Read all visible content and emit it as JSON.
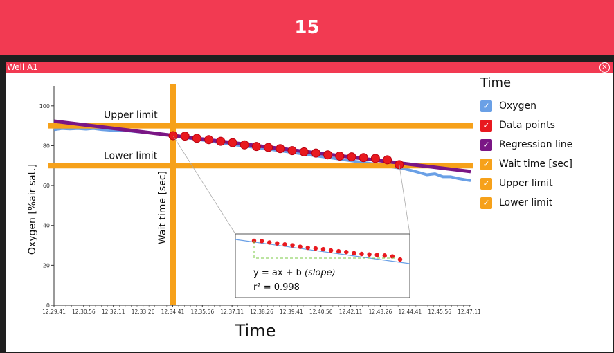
{
  "banner": {
    "title": "15"
  },
  "panel": {
    "title": "Well A1",
    "close_icon": "circle-x-icon"
  },
  "legend": {
    "title": "Time",
    "items": [
      {
        "label": "Oxygen",
        "color": "#6aa0e6"
      },
      {
        "label": "Data points",
        "color": "#e8191f"
      },
      {
        "label": "Regression line",
        "color": "#7a1685"
      },
      {
        "label": "Wait time [sec]",
        "color": "#f6a11a"
      },
      {
        "label": "Upper limit",
        "color": "#f6a11a"
      },
      {
        "label": "Lower limit",
        "color": "#f6a11a"
      }
    ]
  },
  "inset": {
    "equation": "y = ax + b",
    "equation_note": "(slope)",
    "r2": "r² = 0.998"
  },
  "chart_data": {
    "type": "line",
    "xlabel": "Time",
    "ylabel": "Oxygen [%air sat.]",
    "ylim": [
      0,
      110
    ],
    "yticks": [
      0,
      20,
      40,
      60,
      80,
      100
    ],
    "xtick_labels": [
      "12:29:41",
      "12:30:56",
      "12:32:11",
      "12:33:26",
      "12:34:41",
      "12:35:56",
      "12:37:11",
      "12:38:26",
      "12:39:41",
      "12:40:56",
      "12:42:11",
      "12:43:26",
      "12:44:41",
      "12:45:56",
      "12:47:11"
    ],
    "x_unit": "seconds from 12:29:41",
    "xlim": [
      0,
      1050
    ],
    "limits": [
      {
        "label": "Upper limit",
        "y": 90,
        "color": "#f6a11a"
      },
      {
        "label": "Lower limit",
        "y": 70,
        "color": "#f6a11a"
      }
    ],
    "wait_time": {
      "label": "Wait time [sec]",
      "x": 300,
      "color": "#f6a11a"
    },
    "series": [
      {
        "name": "Oxygen",
        "color": "#6aa0e6",
        "x": [
          0,
          20,
          40,
          60,
          80,
          100,
          120,
          140,
          160,
          180,
          200,
          220,
          240,
          260,
          280,
          300,
          330,
          360,
          400,
          450,
          500,
          550,
          600,
          650,
          700,
          750,
          800,
          850,
          880,
          900,
          920,
          940,
          960,
          980,
          1000,
          1020,
          1040,
          1050
        ],
        "y": [
          88,
          88.6,
          88.4,
          88.6,
          88.3,
          88.6,
          88.1,
          87.8,
          87.5,
          87.6,
          87.2,
          86.8,
          86.4,
          86.1,
          85.6,
          85,
          84.1,
          83.2,
          82,
          80.6,
          79.3,
          78,
          76.6,
          75.2,
          73.8,
          72.4,
          71,
          69.4,
          68.5,
          67.6,
          66.5,
          65.4,
          65.9,
          64.4,
          64.4,
          63.5,
          62.8,
          62.5
        ]
      },
      {
        "name": "Regression line",
        "color": "#7a1685",
        "x": [
          0,
          1050
        ],
        "y": [
          92.3,
          67.0
        ]
      },
      {
        "name": "Data points",
        "color": "#e8191f",
        "type": "scatter",
        "x": [
          300,
          330,
          360,
          390,
          420,
          450,
          480,
          510,
          540,
          570,
          600,
          630,
          660,
          690,
          720,
          750,
          780,
          810,
          840,
          870
        ],
        "y": [
          85,
          84.8,
          83.7,
          83,
          82.2,
          81.5,
          80.4,
          79.6,
          79.1,
          78.5,
          77.5,
          76.9,
          76.3,
          75.4,
          74.8,
          74.4,
          74,
          73.6,
          72.9,
          70.5
        ]
      }
    ]
  }
}
